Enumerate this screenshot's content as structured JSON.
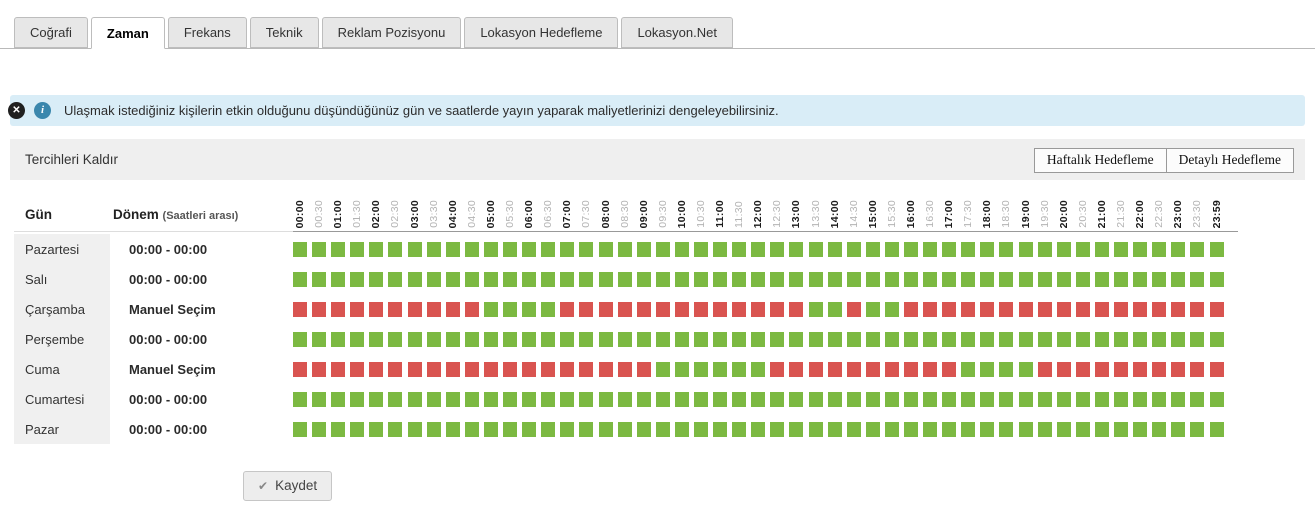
{
  "tabs": {
    "items": [
      {
        "label": "Coğrafi",
        "active": false
      },
      {
        "label": "Zaman",
        "active": true
      },
      {
        "label": "Frekans",
        "active": false
      },
      {
        "label": "Teknik",
        "active": false
      },
      {
        "label": "Reklam Pozisyonu",
        "active": false
      },
      {
        "label": "Lokasyon Hedefleme",
        "active": false
      },
      {
        "label": "Lokasyon.Net",
        "active": false
      }
    ]
  },
  "banner": {
    "close_glyph": "✕",
    "info_glyph": "i",
    "text": "Ulaşmak istediğiniz kişilerin etkin olduğunu düşündüğünüz gün ve saatlerde yayın yaparak maliyetlerinizi dengeleyebilirsiniz."
  },
  "toolbar": {
    "remove_label": "Tercihleri Kaldır",
    "weekly_label": "Haftalık Hedefleme",
    "detailed_label": "Detaylı Hedefleme"
  },
  "grid": {
    "day_header": "Gün",
    "period_header": "Dönem",
    "period_header_note": "(Saatleri arası)",
    "time_labels": [
      "00:00",
      "00:30",
      "01:00",
      "01:30",
      "02:00",
      "02:30",
      "03:00",
      "03:30",
      "04:00",
      "04:30",
      "05:00",
      "05:30",
      "06:00",
      "06:30",
      "07:00",
      "07:30",
      "08:00",
      "08:30",
      "09:00",
      "09:30",
      "10:00",
      "10:30",
      "11:00",
      "11:30",
      "12:00",
      "12:30",
      "13:00",
      "13:30",
      "14:00",
      "14:30",
      "15:00",
      "15:30",
      "16:00",
      "16:30",
      "17:00",
      "17:30",
      "18:00",
      "18:30",
      "19:00",
      "19:30",
      "20:00",
      "20:30",
      "21:00",
      "21:30",
      "22:00",
      "22:30",
      "23:00",
      "23:30",
      "23:59"
    ],
    "rows": [
      {
        "day": "Pazartesi",
        "period": "00:00 - 00:00",
        "pattern": "GGGGGGGGGGGGGGGGGGGGGGGGGGGGGGGGGGGGGGGGGGGGGGGGG"
      },
      {
        "day": "Salı",
        "period": "00:00 - 00:00",
        "pattern": "GGGGGGGGGGGGGGGGGGGGGGGGGGGGGGGGGGGGGGGGGGGGGGGGG"
      },
      {
        "day": "Çarşamba",
        "period": "Manuel Seçim",
        "pattern": "RRRRRRRRRRGGGGRRRRRRRRRRRRRGGRGGRRRRRRRRRRRRRRRRR"
      },
      {
        "day": "Perşembe",
        "period": "00:00 - 00:00",
        "pattern": "GGGGGGGGGGGGGGGGGGGGGGGGGGGGGGGGGGGGGGGGGGGGGGGGG"
      },
      {
        "day": "Cuma",
        "period": "Manuel Seçim",
        "pattern": "RRRRRRRRRRRRRRRRRRRGGGGGGRRRRRRRRRRGGGGRRRRRRRRRR"
      },
      {
        "day": "Cumartesi",
        "period": "00:00 - 00:00",
        "pattern": "GGGGGGGGGGGGGGGGGGGGGGGGGGGGGGGGGGGGGGGGGGGGGGGGG"
      },
      {
        "day": "Pazar",
        "period": "00:00 - 00:00",
        "pattern": "GGGGGGGGGGGGGGGGGGGGGGGGGGGGGGGGGGGGGGGGGGGGGGGGG"
      }
    ]
  },
  "save": {
    "check_glyph": "✔",
    "label": "Kaydet"
  },
  "colors": {
    "slot_green": "#7cb942",
    "slot_red": "#d95450",
    "banner_bg": "#d9edf7",
    "info_icon": "#3a87ad",
    "close_icon": "#1f1f1f"
  }
}
